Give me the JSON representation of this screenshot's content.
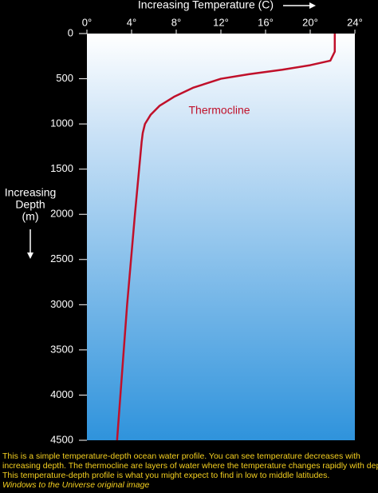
{
  "chart_data": {
    "type": "line",
    "x_label": "Increasing Temperature (C)",
    "y_label": [
      "Increasing",
      "Depth",
      "(m)"
    ],
    "annotation": "Thermocline",
    "x": [
      22.2,
      22.2,
      22.2,
      21.8,
      20,
      17.5,
      14.5,
      12,
      9.5,
      7.8,
      6.5,
      5.7,
      5.2,
      5.0,
      4.9,
      4.3,
      3.6,
      3.0,
      2.7
    ],
    "values": [
      0,
      100,
      200,
      300,
      350,
      400,
      450,
      500,
      600,
      700,
      800,
      900,
      1000,
      1100,
      1200,
      2000,
      3000,
      4000,
      4500
    ],
    "color": "#c0102a",
    "xlim": [
      0,
      24
    ],
    "xticks": [
      {
        "value": 0,
        "label": "0°"
      },
      {
        "value": 4,
        "label": "4°"
      },
      {
        "value": 8,
        "label": "8°"
      },
      {
        "value": 12,
        "label": "12°"
      },
      {
        "value": 16,
        "label": "16°"
      },
      {
        "value": 20,
        "label": "20°"
      },
      {
        "value": 24,
        "label": "24°"
      }
    ],
    "ylim": [
      0,
      4500
    ],
    "yticks": [
      0,
      500,
      1000,
      1500,
      2000,
      2500,
      3000,
      3500,
      4000,
      4500
    ],
    "y_inverted": true,
    "caption": [
      "This is a simple temperature-depth ocean water profile. You can see temperature decreases with",
      "increasing depth. The thermocline are layers of water where the temperature changes rapidly with depth.",
      "This temperature-depth profile is what you might expect to find in low to middle latitudes."
    ],
    "credit": "Windows to the Universe original image"
  }
}
